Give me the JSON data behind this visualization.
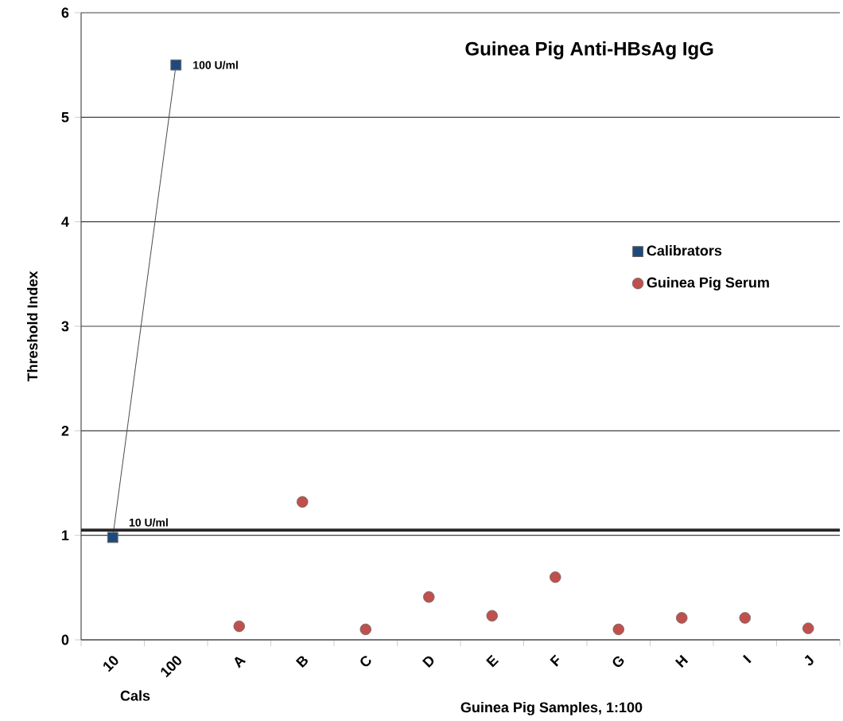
{
  "chart_data": {
    "type": "scatter",
    "title": "Guinea Pig Anti-HBsAg IgG",
    "xlabel": "Guinea Pig Samples, 1:100",
    "ylabel": "Threshold Index",
    "categories": [
      "10",
      "100",
      "A",
      "B",
      "C",
      "D",
      "E",
      "F",
      "G",
      "H",
      "I",
      "J"
    ],
    "series": [
      {
        "name": "Calibrators",
        "type": "line",
        "marker": "square",
        "color": "#1f497d",
        "values": [
          0.98,
          5.5,
          null,
          null,
          null,
          null,
          null,
          null,
          null,
          null,
          null,
          null
        ]
      },
      {
        "name": "Guinea Pig Serum",
        "marker": "circle",
        "color": "#c0504d",
        "values": [
          null,
          null,
          0.13,
          1.32,
          0.1,
          0.41,
          0.23,
          0.6,
          0.1,
          0.21,
          0.21,
          0.11
        ]
      }
    ],
    "ylim": [
      0,
      6
    ],
    "yticks": [
      0,
      1,
      2,
      3,
      4,
      5,
      6
    ],
    "grid": "y",
    "legend": "right",
    "ref_lines": [
      {
        "axis": "y",
        "value": 1.05,
        "label": "10 U/ml",
        "color": "#262626"
      }
    ],
    "annotations": [
      {
        "text": "100 U/ml",
        "x": "100",
        "y": 5.5
      },
      "Cals"
    ]
  }
}
